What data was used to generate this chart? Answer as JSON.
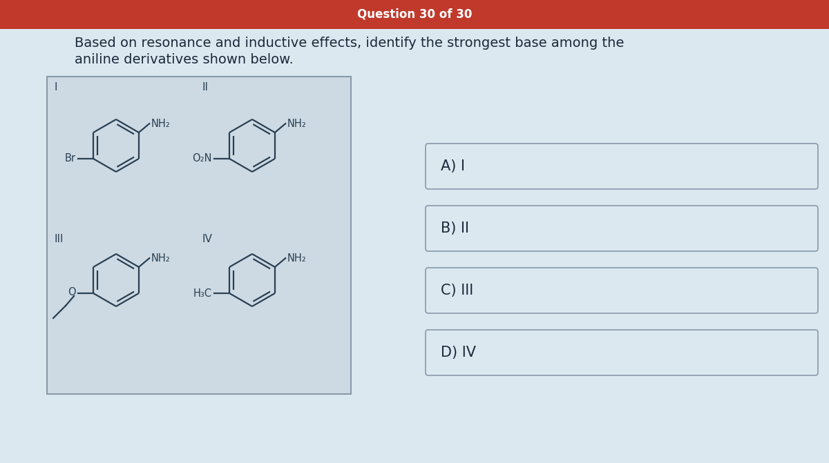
{
  "header_text": "Question 30 of 30",
  "header_bg": "#c0392b",
  "header_text_color": "#ffffff",
  "body_bg": "#dce8f0",
  "question_text_line1": "Based on resonance and inductive effects, identify the strongest base among the",
  "question_text_line2": "aniline derivatives shown below.",
  "question_text_color": "#1a2a3a",
  "box_bg": "#cddae3",
  "box_border": "#8899aa",
  "answer_box_bg": "#dce8f0",
  "answer_box_border": "#8899aa",
  "answers": [
    "A) I",
    "B) II",
    "C) III",
    "D) IV"
  ],
  "molecule_color": "#2a3f52",
  "highlight_color": "#ffffff",
  "title_fontsize": 12,
  "body_fontsize": 14,
  "answer_fontsize": 15
}
